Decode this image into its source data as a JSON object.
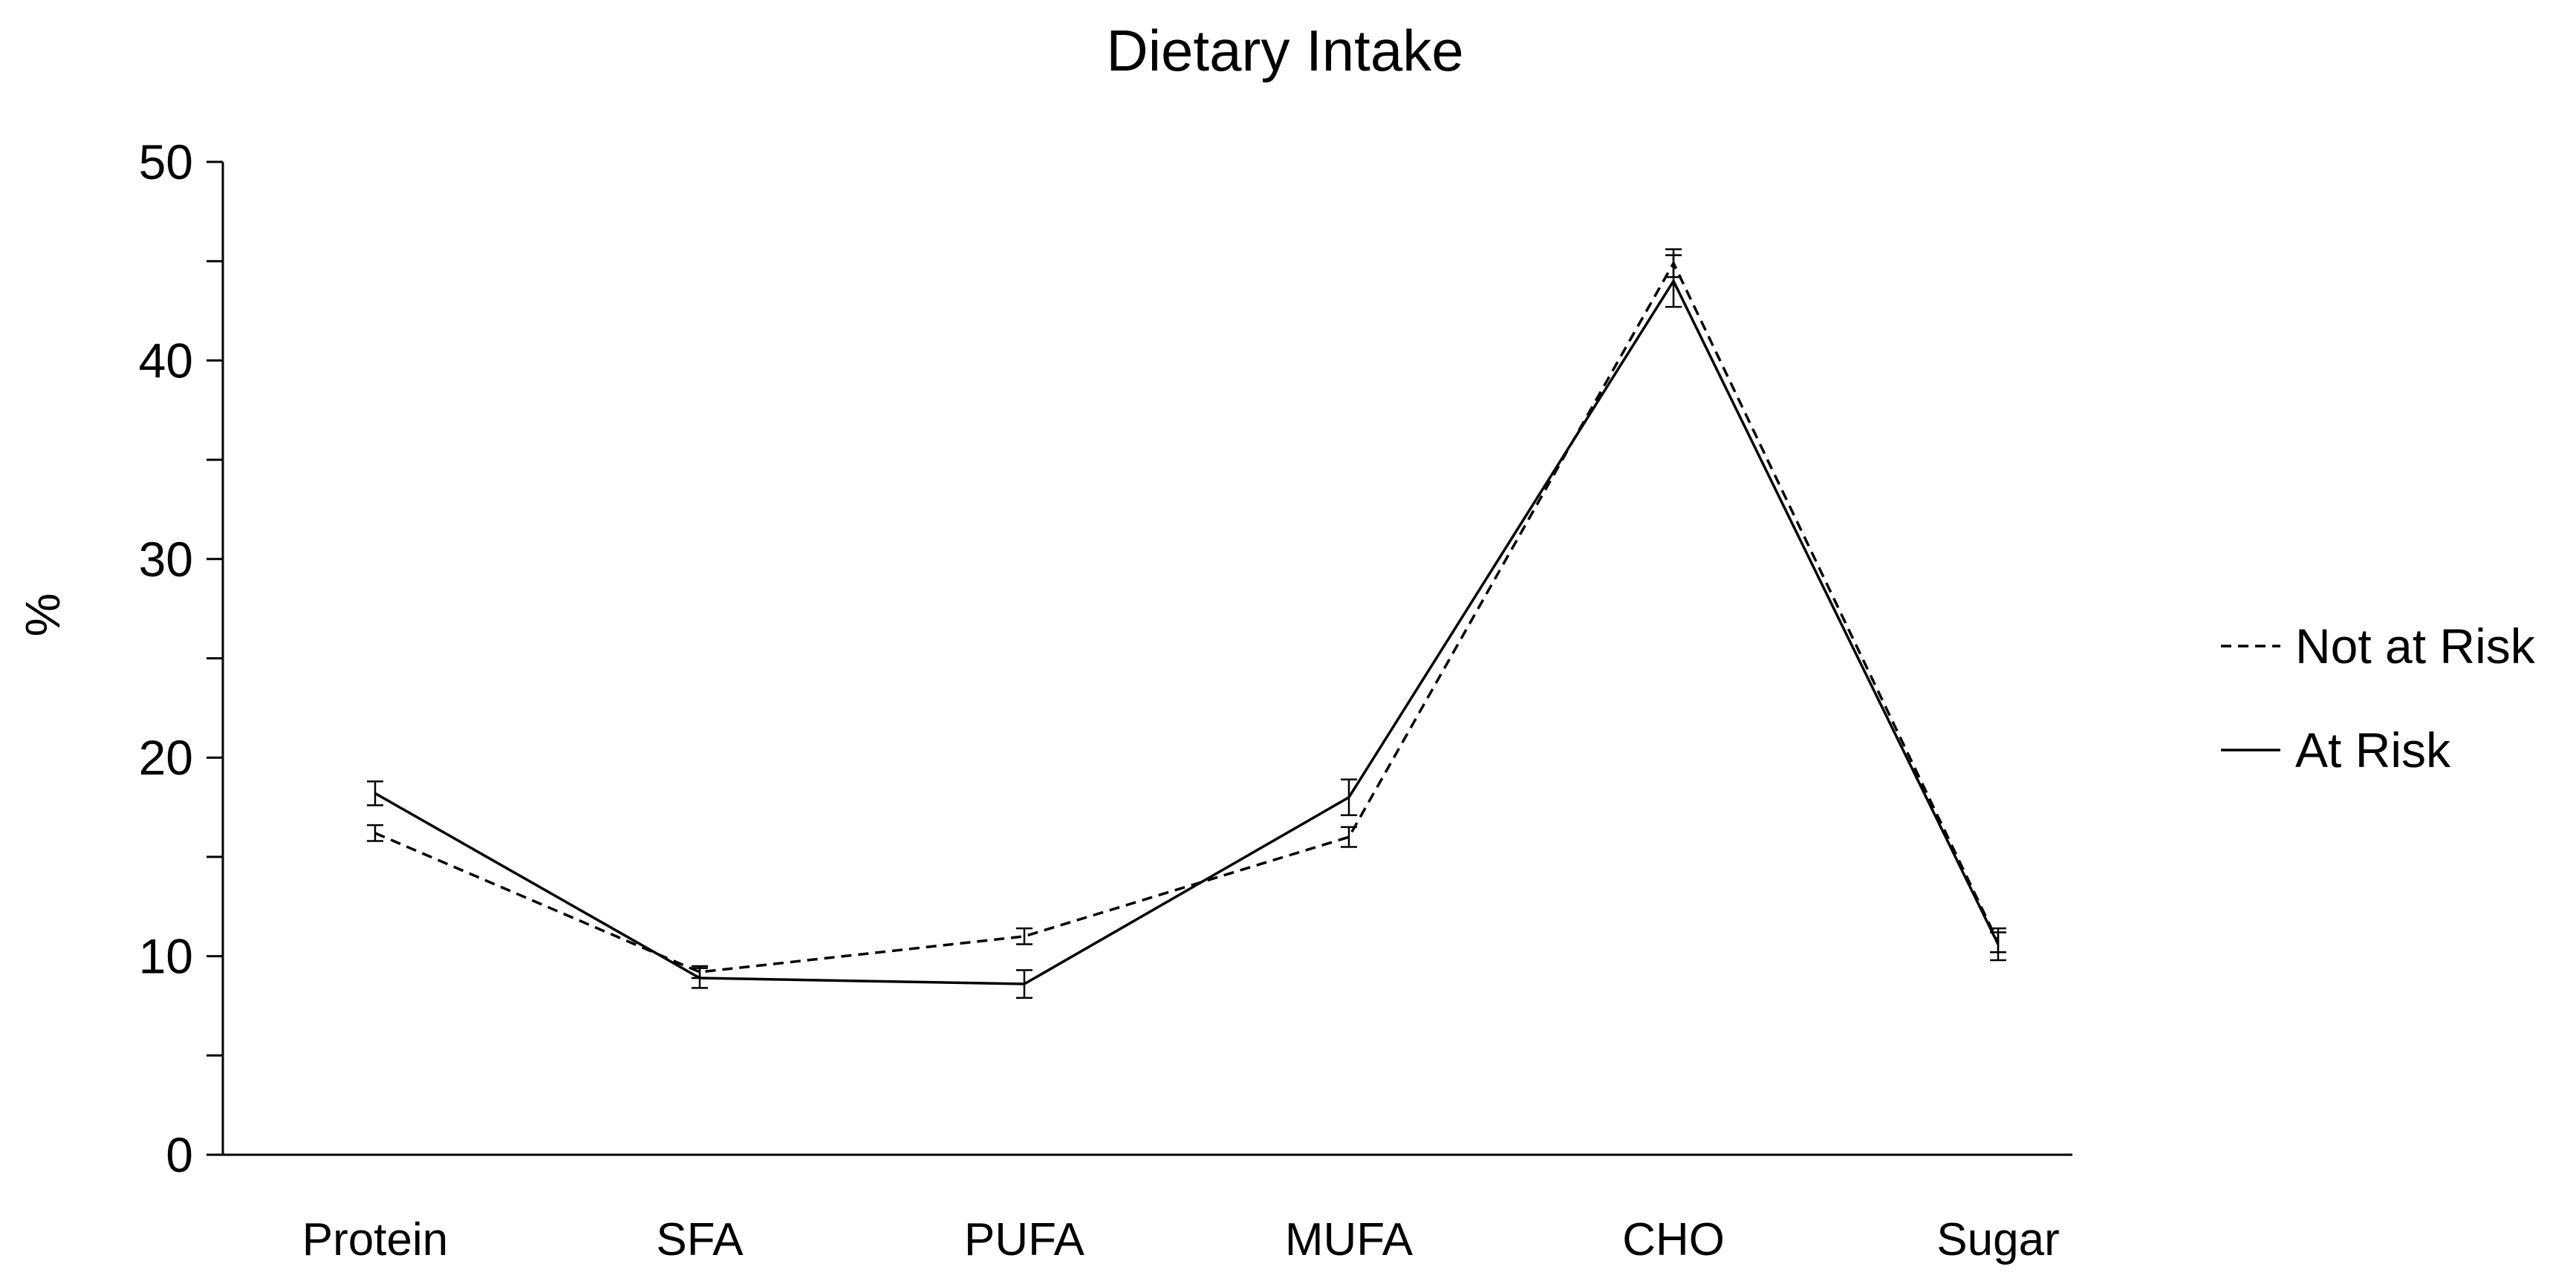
{
  "chart_data": {
    "type": "line",
    "title": "Dietary Intake",
    "xlabel": "",
    "ylabel": "%",
    "ylim": [
      0,
      50
    ],
    "yticks": [
      0,
      10,
      20,
      30,
      40,
      50
    ],
    "grid": false,
    "legend": "right",
    "categories": [
      "Protein",
      "SFA",
      "PUFA",
      "MUFA",
      "CHO",
      "Sugar"
    ],
    "series": [
      {
        "name": "Not at Risk",
        "line_style": "dashed",
        "color": "#000000",
        "values": [
          16.2,
          9.2,
          11.0,
          16.0,
          44.9,
          10.7
        ],
        "error": [
          0.4,
          0.3,
          0.4,
          0.5,
          0.7,
          0.5
        ]
      },
      {
        "name": "At Risk",
        "line_style": "solid",
        "color": "#000000",
        "values": [
          18.2,
          8.9,
          8.6,
          18.0,
          44.0,
          10.6
        ],
        "error": [
          0.6,
          0.5,
          0.7,
          0.9,
          1.3,
          0.8
        ]
      }
    ]
  }
}
